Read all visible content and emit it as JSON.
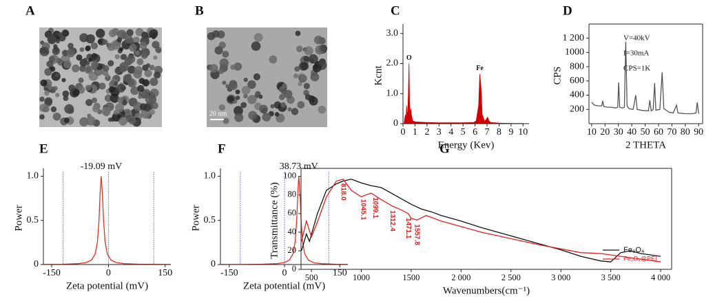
{
  "panels": [
    {
      "label": "A"
    },
    {
      "label": "B",
      "scale_bar": "20 nm"
    }
  ],
  "chart_data": [
    {
      "type": "area",
      "panel_label": "C",
      "x_label": "Energy (Kev)",
      "y_label": "Kcnt",
      "xlim": [
        0,
        10.5
      ],
      "ylim": [
        0,
        3.2
      ],
      "xticks": [
        0,
        1,
        2,
        3,
        4,
        5,
        6,
        7,
        8,
        9,
        10
      ],
      "yticks": [
        0,
        {
          "value": 1,
          "label": "1.0"
        },
        {
          "value": 2,
          "label": "2.0"
        },
        {
          "value": 3,
          "label": "3.0"
        }
      ],
      "annotations": [
        {
          "text": "O",
          "x": 0.5,
          "y": 2.0
        },
        {
          "text": "Fe",
          "x": 6.4,
          "y": 1.65
        }
      ],
      "series": [
        {
          "color": "#d00000",
          "x": [
            0.1,
            0.2,
            0.25,
            0.3,
            0.35,
            0.4,
            0.45,
            0.5,
            0.52,
            0.55,
            0.6,
            0.65,
            0.7,
            0.75,
            0.8,
            0.9,
            1.0,
            1.5,
            2,
            3,
            4,
            5,
            5.9,
            6.1,
            6.3,
            6.4,
            6.5,
            6.6,
            6.8,
            6.95,
            7.05,
            7.15,
            7.3,
            8,
            9,
            10
          ],
          "values": [
            0.05,
            0.3,
            0.1,
            0.6,
            0.3,
            0.4,
            1.0,
            2.0,
            1.4,
            0.6,
            0.3,
            0.5,
            0.3,
            0.2,
            0.1,
            0.08,
            0.06,
            0.05,
            0.04,
            0.03,
            0.03,
            0.03,
            0.04,
            0.1,
            0.6,
            1.65,
            1.2,
            0.3,
            0.08,
            0.15,
            0.22,
            0.1,
            0.04,
            0.02,
            0.01,
            0.01
          ]
        }
      ]
    },
    {
      "type": "line",
      "panel_label": "D",
      "x_label": "2 THETA",
      "y_label": "CPS",
      "xlim": [
        8,
        93
      ],
      "ylim": [
        0,
        1350
      ],
      "xticks": [
        10,
        20,
        30,
        40,
        50,
        60,
        70,
        80,
        90
      ],
      "yticks": [
        200,
        400,
        600,
        800,
        1000,
        {
          "value": 1200,
          "label": "1 200"
        }
      ],
      "notes": [
        "V=40kV",
        "I=30mA",
        "CPS=1K"
      ],
      "series": [
        {
          "color": "#555555",
          "x": [
            10,
            12,
            15,
            17.5,
            18.3,
            19,
            22,
            25,
            28,
            29.5,
            30.2,
            31,
            33,
            34.5,
            35.5,
            36.5,
            38,
            41,
            43,
            44,
            48,
            52.5,
            53.5,
            54.5,
            56,
            57.1,
            58,
            61,
            62.7,
            64,
            68,
            71,
            73.5,
            74.5,
            80,
            85,
            88,
            89,
            90
          ],
          "values": [
            300,
            260,
            250,
            250,
            320,
            240,
            230,
            230,
            220,
            230,
            580,
            230,
            220,
            230,
            1150,
            250,
            210,
            200,
            400,
            200,
            185,
            180,
            330,
            180,
            200,
            570,
            190,
            200,
            720,
            210,
            160,
            150,
            260,
            150,
            140,
            140,
            150,
            300,
            140
          ]
        }
      ]
    },
    {
      "type": "line",
      "panel_label": "E",
      "title": "-19.09 mV",
      "x_label": "Zeta potential (mV)",
      "y_label": "Power",
      "xlim": [
        -172,
        165
      ],
      "ylim": [
        0,
        1.05
      ],
      "xticks": [
        -150,
        0,
        150
      ],
      "yticks": [
        0,
        0.5,
        {
          "value": 1,
          "label": "1.0"
        }
      ],
      "vlines": [
        -120,
        0,
        120
      ],
      "vline_color": "#8888ee",
      "series": [
        {
          "color": "#e03020",
          "x": [
            -172,
            -120,
            -80,
            -60,
            -45,
            -35,
            -29,
            -25,
            -22,
            -19.09,
            -16,
            -13,
            -9,
            -3,
            7,
            20,
            40,
            80,
            165
          ],
          "values": [
            0.001,
            0.0035,
            0.01,
            0.02,
            0.05,
            0.12,
            0.26,
            0.5,
            0.8,
            1,
            0.8,
            0.5,
            0.26,
            0.12,
            0.05,
            0.023,
            0.01,
            0.004,
            0.001
          ]
        }
      ]
    },
    {
      "type": "line",
      "panel_label": "F",
      "title": "38.73 mV",
      "x_label": "Zeta potential (mV)",
      "y_label": "Power",
      "xlim": [
        -174,
        172
      ],
      "ylim": [
        0,
        1.05
      ],
      "xticks": [
        -150,
        0,
        150
      ],
      "yticks": [
        0,
        0.5,
        {
          "value": 1,
          "label": "1.0"
        }
      ],
      "vlines": [
        -120,
        0,
        120
      ],
      "vline_color": "#8888ee",
      "series": [
        {
          "color": "#e03020",
          "x": [
            -174,
            -120,
            -60,
            -20,
            0,
            13,
            23,
            29,
            33,
            36,
            38.73,
            42,
            45,
            49,
            55,
            65,
            80,
            100,
            140,
            172
          ],
          "values": [
            0.001,
            0.001,
            0.004,
            0.01,
            0.023,
            0.05,
            0.12,
            0.26,
            0.5,
            0.8,
            1,
            0.8,
            0.5,
            0.26,
            0.12,
            0.05,
            0.02,
            0.01,
            0.0035,
            0.001
          ]
        }
      ]
    },
    {
      "type": "line",
      "panel_label": "G",
      "x_label": "Wavenumbers(cm⁻¹)",
      "y_label": "Transmittance (%)",
      "xlim": [
        396,
        4110
      ],
      "ylim": [
        0,
        105
      ],
      "xticks": [
        500,
        1000,
        1500,
        {
          "value": 2000,
          "label": "2 000"
        },
        {
          "value": 2500,
          "label": "2 500"
        },
        {
          "value": 3000,
          "label": "3 000"
        },
        {
          "value": 3500,
          "label": "3 500"
        },
        {
          "value": 4000,
          "label": "4 000"
        }
      ],
      "yticks": [
        0,
        20,
        40,
        60,
        80,
        100
      ],
      "legend": "lower right",
      "peak_labels": [
        {
          "label": "818.0",
          "x": 818
        },
        {
          "label": "1099.1",
          "x": 1099.1
        },
        {
          "label": "1045.1",
          "x": 1045.1
        },
        {
          "label": "1312.4",
          "x": 1312.4
        },
        {
          "label": "1471.1",
          "x": 1471.1
        },
        {
          "label": "1557.8",
          "x": 1557.8
        }
      ],
      "peak_color": "#e02020",
      "series": [
        {
          "name": "Fe₃O₄",
          "color": "#111111",
          "x": [
            400,
            450,
            480,
            520,
            560,
            650,
            750,
            818,
            900,
            950,
            1000,
            1100,
            1200,
            1300,
            1400,
            1500,
            1600,
            1700,
            1800,
            2000,
            2200,
            2400,
            2600,
            2800,
            3000,
            3200,
            3400,
            3500,
            3600,
            3700,
            3800,
            4000
          ],
          "values": [
            20,
            38,
            30,
            45,
            60,
            85,
            92,
            95,
            97,
            95,
            93,
            90,
            88,
            82,
            76,
            70,
            65,
            62,
            58,
            52,
            45,
            39,
            33,
            27,
            21,
            14,
            9,
            8,
            18,
            20,
            17,
            14
          ]
        },
        {
          "name": "Fe₃O₄@PEI",
          "color": "#e02020",
          "x": [
            400,
            450,
            500,
            550,
            650,
            750,
            818,
            900,
            1000,
            1045,
            1099,
            1200,
            1312,
            1400,
            1471,
            1500,
            1557,
            1650,
            1800,
            2000,
            2200,
            2500,
            2800,
            3000,
            3200,
            3400,
            3600,
            3800,
            4000
          ],
          "values": [
            30,
            52,
            35,
            48,
            78,
            95,
            97,
            85,
            78,
            80,
            82,
            75,
            68,
            64,
            60,
            55,
            53,
            58,
            52,
            46,
            40,
            33,
            26,
            22,
            18,
            17,
            14,
            11,
            8
          ]
        }
      ]
    }
  ]
}
